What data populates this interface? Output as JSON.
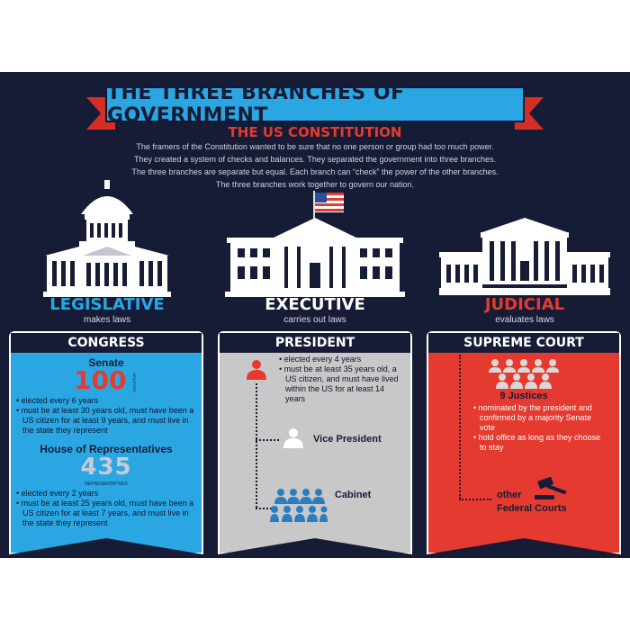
{
  "title": "THE THREE BRANCHES OF GOVERNMENT",
  "subtitle": "THE US CONSTITUTION",
  "intro": [
    "The framers of the Constitution wanted to be sure that no one person or group had too much power.",
    "They created a system of checks and balances. They separated the government into three branches.",
    "The three branches are separate but equal. Each branch can “check” the power of the other branches.",
    "The three branches work together to govern our nation."
  ],
  "colors": {
    "navy": "#171c36",
    "blue": "#2aa7e3",
    "red": "#e53a2f",
    "gray": "#c8c8c8"
  },
  "branches": {
    "legislative": {
      "name": "LEGISLATIVE",
      "role": "makes laws"
    },
    "executive": {
      "name": "EXECUTIVE",
      "role": "carries out laws"
    },
    "judicial": {
      "name": "JUDICIAL",
      "role": "evaluates laws"
    }
  },
  "congress": {
    "heading": "CONGRESS",
    "senate_title": "Senate",
    "senate_number": "100",
    "senate_unit": "SENATORS",
    "senate_bullets": [
      "elected every 6 years",
      "must be at least 30 years old, must have been a US citizen for at least 9 years, and must live in the state they represent"
    ],
    "house_title": "House of Representatives",
    "house_number": "435",
    "house_unit": "REPRESENTATIVES",
    "house_bullets": [
      "elected every 2 years",
      "must be at least 25 years old, must have been a US citizen for at least 7 years, and must live in the state they represent"
    ]
  },
  "president": {
    "heading": "PRESIDENT",
    "bullets": [
      "elected every 4 years",
      "must be at least 35 years old, a US citizen, and must have lived within the US for at least 14 years"
    ],
    "vp_label": "Vice President",
    "cabinet_label": "Cabinet",
    "icons": [
      "person-icon",
      "cabinet-group-icon"
    ]
  },
  "supreme_court": {
    "heading": "SUPREME COURT",
    "justices_label": "9 Justices",
    "bullets": [
      "nominated by the president and confirmed by a majority Senate vote",
      "hold office as long as they choose to stay"
    ],
    "other_label": "other",
    "federal_label": "Federal Courts",
    "icons": [
      "justices-icon",
      "gavel-icon"
    ]
  }
}
